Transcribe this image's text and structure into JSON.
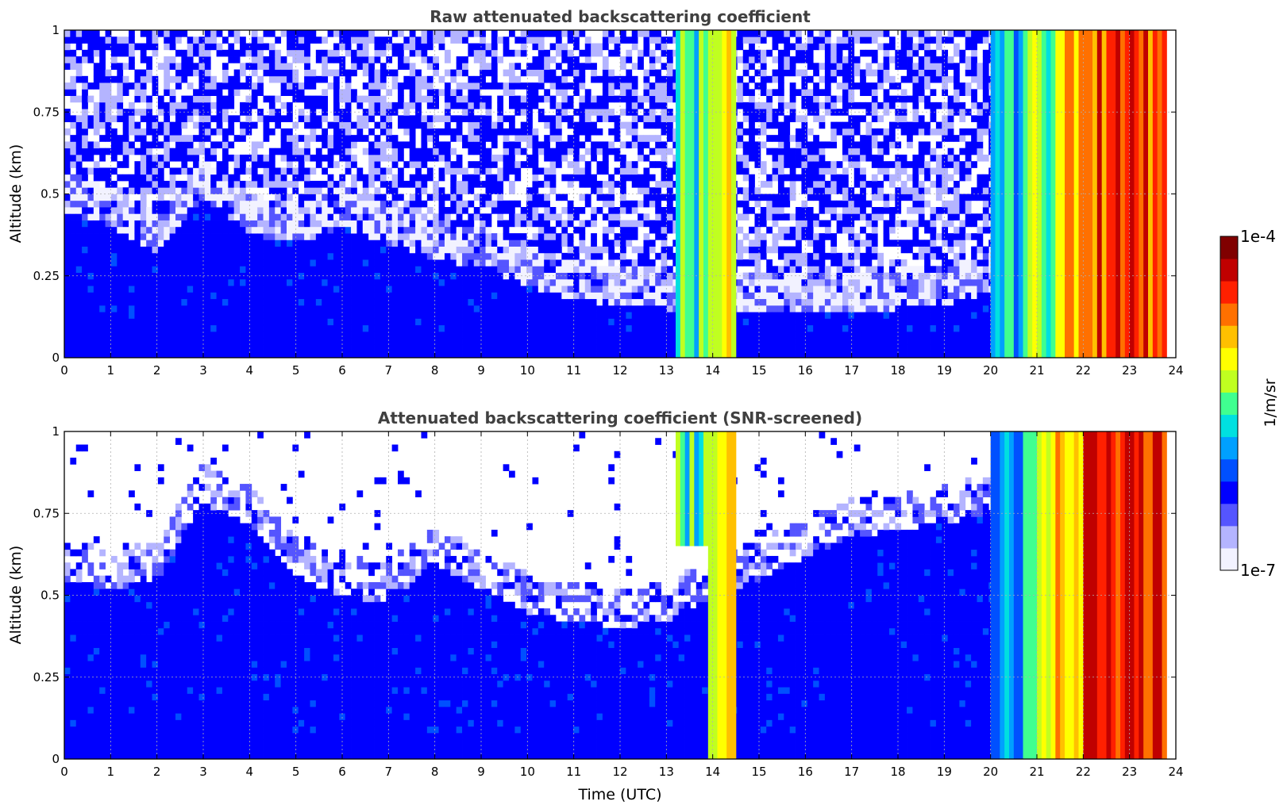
{
  "chart_data": [
    {
      "type": "heatmap",
      "title": "Raw attenuated backscattering coefficient",
      "xlabel": "",
      "ylabel": "Altitude (km)",
      "xlim": [
        0,
        24
      ],
      "ylim": [
        0,
        1
      ],
      "x_ticks": [
        "0",
        "1",
        "2",
        "3",
        "4",
        "5",
        "6",
        "7",
        "8",
        "9",
        "10",
        "11",
        "12",
        "13",
        "14",
        "15",
        "16",
        "17",
        "18",
        "19",
        "20",
        "21",
        "22",
        "23",
        "24"
      ],
      "y_ticks": [
        "0",
        "0.25",
        "0.5",
        "0.75",
        "1"
      ],
      "y_tick_values": [
        0,
        0.25,
        0.5,
        0.75,
        1
      ],
      "grid": true,
      "screened": false,
      "boundary_layer_top_km": [
        [
          0,
          0.45
        ],
        [
          1,
          0.4
        ],
        [
          2,
          0.32
        ],
        [
          3,
          0.48
        ],
        [
          4,
          0.38
        ],
        [
          5,
          0.35
        ],
        [
          6,
          0.4
        ],
        [
          7,
          0.35
        ],
        [
          8,
          0.3
        ],
        [
          9,
          0.28
        ],
        [
          10,
          0.22
        ],
        [
          11,
          0.18
        ],
        [
          12,
          0.16
        ],
        [
          13,
          0.15
        ],
        [
          14,
          0.15
        ],
        [
          15,
          0.15
        ],
        [
          16,
          0.15
        ],
        [
          17,
          0.15
        ],
        [
          18,
          0.15
        ],
        [
          19,
          0.16
        ],
        [
          20,
          0.2
        ],
        [
          24,
          0.2
        ]
      ],
      "bands": [
        {
          "x0": 13.2,
          "x1": 13.9,
          "y0": 0.0,
          "y1": 1.0,
          "level": 0.48
        },
        {
          "x0": 13.9,
          "x1": 14.5,
          "y0": 0.0,
          "y1": 1.0,
          "level": 0.65
        },
        {
          "x0": 20.0,
          "x1": 20.8,
          "y0": 0.0,
          "y1": 1.0,
          "level": 0.4
        },
        {
          "x0": 20.8,
          "x1": 21.4,
          "y0": 0.0,
          "y1": 1.0,
          "level": 0.55
        },
        {
          "x0": 21.4,
          "x1": 22.0,
          "y0": 0.0,
          "y1": 1.0,
          "level": 0.7
        },
        {
          "x0": 22.0,
          "x1": 23.8,
          "y0": 0.0,
          "y1": 1.0,
          "level": 0.82
        }
      ],
      "data_extent_x": [
        0,
        23.8
      ]
    },
    {
      "type": "heatmap",
      "title": "Attenuated backscattering coefficient (SNR-screened)",
      "xlabel": "Time (UTC)",
      "ylabel": "Altitude (km)",
      "xlim": [
        0,
        24
      ],
      "ylim": [
        0,
        1
      ],
      "x_ticks": [
        "0",
        "1",
        "2",
        "3",
        "4",
        "5",
        "6",
        "7",
        "8",
        "9",
        "10",
        "11",
        "12",
        "13",
        "14",
        "15",
        "16",
        "17",
        "18",
        "19",
        "20",
        "21",
        "22",
        "23",
        "24"
      ],
      "y_ticks": [
        "0",
        "0.25",
        "0.5",
        "0.75",
        "1"
      ],
      "y_tick_values": [
        0,
        0.25,
        0.5,
        0.75,
        1
      ],
      "grid": true,
      "screened": true,
      "boundary_layer_top_km": [
        [
          0,
          0.55
        ],
        [
          1,
          0.52
        ],
        [
          2,
          0.55
        ],
        [
          3,
          0.78
        ],
        [
          4,
          0.72
        ],
        [
          5,
          0.55
        ],
        [
          6,
          0.5
        ],
        [
          7,
          0.48
        ],
        [
          8,
          0.6
        ],
        [
          9,
          0.52
        ],
        [
          10,
          0.45
        ],
        [
          11,
          0.42
        ],
        [
          12,
          0.4
        ],
        [
          13,
          0.42
        ],
        [
          14,
          0.5
        ],
        [
          15,
          0.55
        ],
        [
          16,
          0.62
        ],
        [
          17,
          0.68
        ],
        [
          18,
          0.7
        ],
        [
          19,
          0.72
        ],
        [
          20,
          0.75
        ],
        [
          24,
          0.75
        ]
      ],
      "bands": [
        {
          "x0": 13.2,
          "x1": 13.9,
          "y0": 0.65,
          "y1": 1.0,
          "level": 0.48
        },
        {
          "x0": 13.9,
          "x1": 14.5,
          "y0": 0.0,
          "y1": 1.0,
          "level": 0.65
        },
        {
          "x0": 20.0,
          "x1": 20.8,
          "y0": 0.0,
          "y1": 1.0,
          "level": 0.4
        },
        {
          "x0": 20.8,
          "x1": 21.4,
          "y0": 0.0,
          "y1": 1.0,
          "level": 0.55
        },
        {
          "x0": 21.4,
          "x1": 22.0,
          "y0": 0.0,
          "y1": 1.0,
          "level": 0.7
        },
        {
          "x0": 22.0,
          "x1": 23.8,
          "y0": 0.0,
          "y1": 1.0,
          "level": 0.82
        }
      ],
      "data_extent_x": [
        0,
        23.8
      ]
    }
  ],
  "colorbar": {
    "label": "1/m/sr",
    "max_label": "1e-4",
    "min_label": "1e-7",
    "colors": [
      "#f2f2ff",
      "#b4b4ff",
      "#5555ff",
      "#0000ff",
      "#0050ff",
      "#00a0ff",
      "#00e0e0",
      "#40ff90",
      "#c0ff20",
      "#ffff00",
      "#ffc000",
      "#ff7000",
      "#ff2000",
      "#c00000",
      "#800000"
    ]
  }
}
